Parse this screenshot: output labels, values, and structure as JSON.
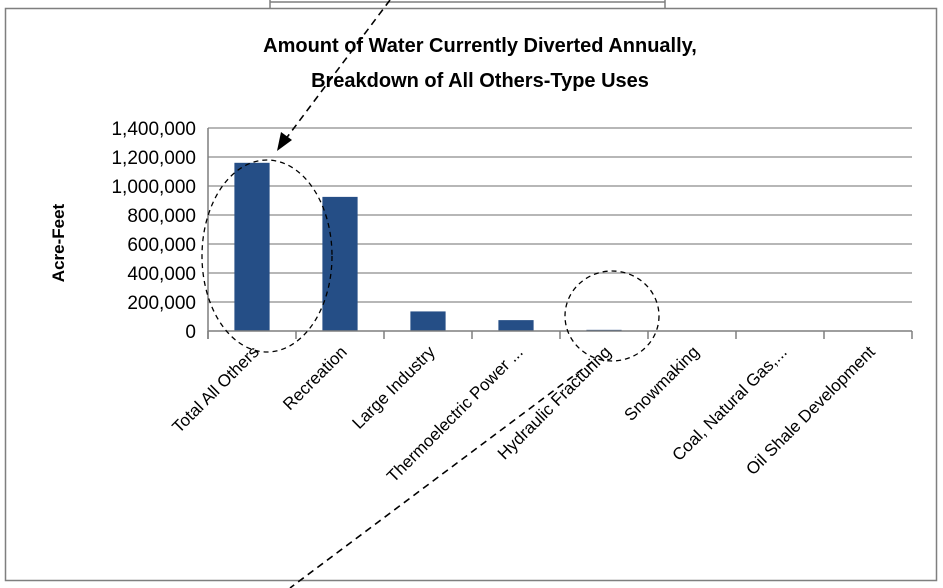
{
  "chart_data": {
    "type": "bar",
    "title": [
      "Amount of Water Currently Diverted Annually,",
      "Breakdown of All Others-Type Uses"
    ],
    "ylabel": "Acre-Feet",
    "xlabel": "",
    "categories": [
      "Total All Others",
      "Recreation",
      "Large Industry",
      "Thermoelectric Power ...",
      "Hydraulic Fracturing",
      "Snowmaking",
      "Coal, Natural Gas,...",
      "Oil Shale Development"
    ],
    "values": [
      1160000,
      925000,
      135000,
      75000,
      8000,
      2000,
      1000,
      500
    ],
    "ylim": [
      0,
      1400000
    ],
    "yticks": [
      "0",
      "200,000",
      "400,000",
      "600,000",
      "800,000",
      "1,000,000",
      "1,200,000",
      "1,400,000"
    ],
    "ytick_values": [
      0,
      200000,
      400000,
      600000,
      800000,
      1000000,
      1200000,
      1400000
    ],
    "grid": true,
    "legend": "none",
    "bar_color": "#254E86",
    "grid_color": "#8C8C8C"
  }
}
